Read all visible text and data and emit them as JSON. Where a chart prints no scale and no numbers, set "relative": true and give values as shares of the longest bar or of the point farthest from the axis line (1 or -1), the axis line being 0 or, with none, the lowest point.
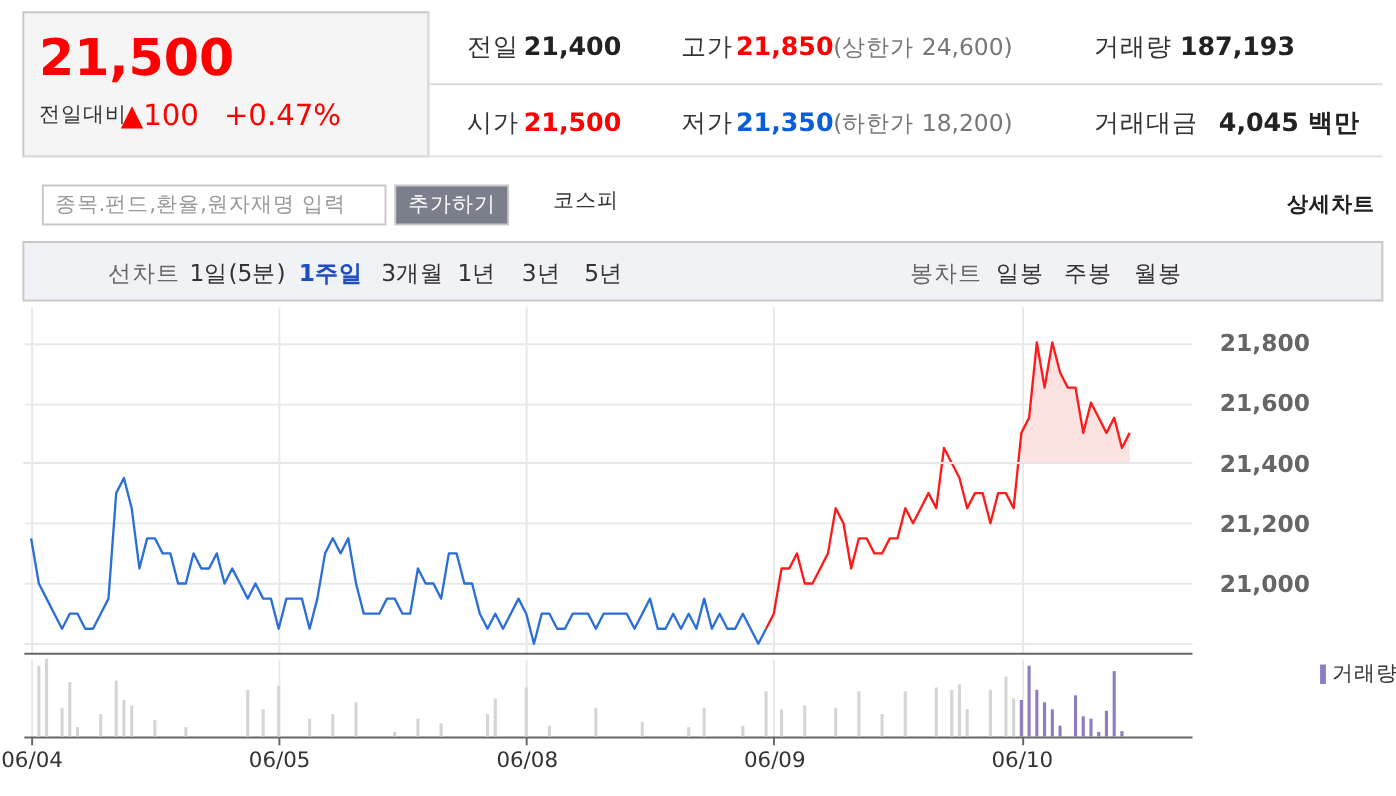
{
  "chart_data": [
    {
      "type": "line",
      "annotations": [
        "21,500",
        "전일대비",
        "▲100",
        "+0.47%",
        "전일",
        "21,400",
        "고가",
        "21,850",
        "(상한가 24,600)",
        "거래량",
        "187,193",
        "시가",
        "21,500",
        "저가",
        "21,350",
        "(하한가 18,200)",
        "거래대금",
        "4,045 백만",
        "종목.펀드,환율,원자재명 입력",
        "추가하기",
        "코스피",
        "상세차트",
        "선차트",
        "1일(5분)",
        "1주일",
        "3개월",
        "1년",
        "3년",
        "5년",
        "봉차트",
        "일봉",
        "주봉",
        "월봉"
      ],
      "categories": [
        null,
        null,
        null,
        null,
        null,
        null,
        null,
        null,
        null,
        null,
        null,
        null,
        null,
        null,
        null,
        null,
        null,
        null,
        null,
        null,
        null,
        null,
        null,
        null,
        null,
        null,
        null,
        null,
        null,
        null,
        null,
        null,
        null,
        null,
        null,
        null,
        null,
        null,
        null,
        null,
        null,
        null,
        null,
        null,
        null,
        null,
        null,
        null,
        null,
        null,
        null,
        null,
        null,
        null,
        null,
        null,
        null,
        null,
        null,
        null,
        null,
        null,
        null,
        null,
        null,
        null,
        null,
        null,
        null,
        null,
        null,
        null,
        null,
        null,
        null,
        null,
        null,
        null,
        null,
        null,
        null,
        null,
        null,
        null,
        null,
        null,
        null,
        null,
        null,
        null,
        null,
        null,
        null,
        null,
        null,
        null,
        null,
        null,
        null,
        null,
        null,
        null,
        null,
        null,
        null,
        null,
        null,
        null,
        null,
        null,
        null,
        null,
        null,
        null,
        null,
        null,
        null,
        null,
        null,
        null,
        null,
        null,
        null,
        null,
        null,
        null,
        null,
        null,
        null,
        null,
        null,
        null,
        null,
        null,
        null,
        null,
        null,
        null,
        null,
        null,
        null,
        null,
        null,
        null,
        null,
        null,
        null,
        null,
        null,
        null
      ],
      "ylim": [
        20770,
        21920
      ],
      "yticks": [
        {
          "value": 20800,
          "label": null
        },
        {
          "value": 21000,
          "label": "21,000"
        },
        {
          "value": 21200,
          "label": "21,200"
        },
        {
          "value": 21400,
          "label": "21,400"
        },
        {
          "value": 21600,
          "label": "21,600"
        },
        {
          "value": 21800,
          "label": "21,800"
        }
      ],
      "grid": true,
      "tick_labels": "y",
      "ref_lines": [
        {
          "axis": "y",
          "value": 21400,
          "color": "#e6e6e6"
        }
      ],
      "series": [
        {
          "type": "area",
          "color": "#fde2e2",
          "values": [
            null,
            null,
            null,
            null,
            null,
            null,
            null,
            null,
            null,
            null,
            null,
            null,
            null,
            null,
            null,
            null,
            null,
            null,
            null,
            null,
            null,
            null,
            null,
            null,
            null,
            null,
            null,
            null,
            null,
            null,
            null,
            null,
            null,
            null,
            null,
            null,
            null,
            null,
            null,
            null,
            null,
            null,
            null,
            null,
            null,
            null,
            null,
            null,
            null,
            null,
            null,
            null,
            null,
            null,
            null,
            null,
            null,
            null,
            null,
            null,
            null,
            null,
            null,
            null,
            null,
            null,
            null,
            null,
            null,
            null,
            null,
            null,
            null,
            null,
            null,
            null,
            null,
            null,
            null,
            null,
            null,
            null,
            null,
            null,
            null,
            null,
            null,
            null,
            null,
            null,
            null,
            null,
            null,
            null,
            null,
            null,
            null,
            null,
            null,
            null,
            null,
            null,
            null,
            null,
            null,
            null,
            null,
            null,
            null,
            null,
            null,
            null,
            null,
            null,
            null,
            null,
            null,
            null,
            null,
            null,
            null,
            null,
            null,
            null,
            null,
            null,
            null,
            null,
            21500,
            21550,
            21800,
            21650,
            21800,
            21700,
            21650,
            21650,
            21500,
            21600,
            21550,
            21500,
            21550,
            21450,
            21500,
            null,
            null,
            null,
            null,
            null,
            null,
            null
          ]
        },
        {
          "type": "line",
          "color": "#2b6fd6",
          "values": [
            21150,
            21000,
            20950,
            20900,
            20850,
            20900,
            20900,
            20850,
            20850,
            20900,
            20950,
            21300,
            21350,
            21250,
            21050,
            21150,
            21150,
            21100,
            21100,
            21000,
            21000,
            21100,
            21050,
            21050,
            21100,
            21000,
            21050,
            21000,
            20950,
            21000,
            20950,
            20950,
            20850,
            20950,
            20950,
            20950,
            20850,
            20950,
            21100,
            21150,
            21100,
            21150,
            21000,
            20900,
            20900,
            20900,
            20950,
            20950,
            20900,
            20900,
            21050,
            21000,
            21000,
            20950,
            21100,
            21100,
            21000,
            21000,
            20900,
            20850,
            20900,
            20850,
            20900,
            20950,
            20900,
            20800,
            20900,
            20900,
            20850,
            20850,
            20900,
            20900,
            20900,
            20850,
            20900,
            20900,
            20900,
            20900,
            20850,
            20900,
            20950,
            20850,
            20850,
            20900,
            20850,
            20900,
            20850,
            20950,
            20850,
            20900,
            20850,
            20850,
            20900,
            20850,
            20800,
            20850,
            null,
            null,
            null,
            null,
            null,
            null,
            null,
            null,
            null,
            null,
            null,
            null,
            null,
            null,
            null,
            null,
            null,
            null,
            null,
            null,
            null,
            null,
            null,
            null,
            null,
            null,
            null,
            null,
            null,
            null,
            null,
            null,
            null,
            null,
            null,
            null,
            null,
            null,
            null,
            null,
            null,
            null,
            null,
            null,
            null,
            null,
            null,
            null,
            null,
            null,
            null,
            null,
            null,
            null
          ]
        },
        {
          "type": "line",
          "color": "#ff1a1a",
          "values": [
            null,
            null,
            null,
            null,
            null,
            null,
            null,
            null,
            null,
            null,
            null,
            null,
            null,
            null,
            null,
            null,
            null,
            null,
            null,
            null,
            null,
            null,
            null,
            null,
            null,
            null,
            null,
            null,
            null,
            null,
            null,
            null,
            null,
            null,
            null,
            null,
            null,
            null,
            null,
            null,
            null,
            null,
            null,
            null,
            null,
            null,
            null,
            null,
            null,
            null,
            null,
            null,
            null,
            null,
            null,
            null,
            null,
            null,
            null,
            null,
            null,
            null,
            null,
            null,
            null,
            null,
            null,
            null,
            null,
            null,
            null,
            null,
            null,
            null,
            null,
            null,
            null,
            null,
            null,
            null,
            null,
            null,
            null,
            null,
            null,
            null,
            null,
            null,
            null,
            null,
            null,
            null,
            null,
            null,
            null,
            20850,
            20900,
            21050,
            21050,
            21100,
            21000,
            21000,
            21050,
            21100,
            21250,
            21200,
            21050,
            21150,
            21150,
            21100,
            21100,
            21150,
            21150,
            21250,
            21200,
            21250,
            21300,
            21250,
            21450,
            21400,
            21350,
            21250,
            21300,
            21300,
            21200,
            21300,
            21300,
            21250,
            21500,
            21550,
            21800,
            21650,
            21800,
            21700,
            21650,
            21650,
            21500,
            21600,
            21550,
            21500,
            21550,
            21450,
            21500,
            null,
            null,
            null,
            null,
            null,
            null,
            null
          ]
        }
      ]
    },
    {
      "type": "bar",
      "relative": true,
      "categories": [
        "06/04",
        null,
        null,
        null,
        null,
        null,
        null,
        null,
        null,
        null,
        null,
        null,
        null,
        null,
        null,
        null,
        null,
        null,
        null,
        null,
        null,
        null,
        null,
        null,
        null,
        null,
        null,
        null,
        null,
        null,
        null,
        null,
        "06/05",
        null,
        null,
        null,
        null,
        null,
        null,
        null,
        null,
        null,
        null,
        null,
        null,
        null,
        null,
        null,
        null,
        null,
        null,
        null,
        null,
        null,
        null,
        null,
        null,
        null,
        null,
        null,
        null,
        null,
        null,
        null,
        "06/08",
        null,
        null,
        null,
        null,
        null,
        null,
        null,
        null,
        null,
        null,
        null,
        null,
        null,
        null,
        null,
        null,
        null,
        null,
        null,
        null,
        null,
        null,
        null,
        null,
        null,
        null,
        null,
        null,
        null,
        null,
        null,
        "06/09",
        null,
        null,
        null,
        null,
        null,
        null,
        null,
        null,
        null,
        null,
        null,
        null,
        null,
        null,
        null,
        null,
        null,
        null,
        null,
        null,
        null,
        null,
        null,
        null,
        null,
        null,
        null,
        null,
        null,
        null,
        null,
        "06/10",
        null,
        null,
        null,
        null,
        null,
        null,
        null,
        null,
        null,
        null,
        null,
        null,
        null,
        null,
        null,
        null,
        null,
        null,
        null,
        null,
        null
      ],
      "grid": "x",
      "tick_labels": "x",
      "legend": "top right",
      "series": [
        {
          "name": "거래량",
          "color": "#8e7cc3",
          "values": [
            null,
            0.91,
            1.0,
            null,
            0.37,
            0.7,
            0.12,
            null,
            null,
            0.29,
            null,
            0.72,
            0.47,
            0.4,
            null,
            null,
            0.21,
            null,
            null,
            null,
            0.12,
            null,
            null,
            null,
            null,
            null,
            null,
            null,
            0.6,
            null,
            0.35,
            null,
            0.65,
            null,
            null,
            null,
            0.23,
            null,
            null,
            0.29,
            null,
            null,
            0.44,
            null,
            null,
            null,
            null,
            0.06,
            null,
            null,
            0.23,
            null,
            null,
            0.17,
            null,
            null,
            null,
            null,
            null,
            0.29,
            0.49,
            null,
            null,
            null,
            0.63,
            null,
            null,
            0.14,
            null,
            null,
            null,
            null,
            null,
            0.37,
            null,
            null,
            null,
            null,
            null,
            0.19,
            null,
            null,
            null,
            null,
            null,
            0.12,
            null,
            0.37,
            null,
            null,
            null,
            null,
            0.14,
            null,
            null,
            0.58,
            null,
            0.35,
            null,
            null,
            0.4,
            null,
            null,
            null,
            0.37,
            null,
            null,
            0.58,
            null,
            null,
            0.29,
            null,
            null,
            0.58,
            null,
            null,
            null,
            0.63,
            null,
            0.6,
            0.67,
            0.35,
            null,
            null,
            0.6,
            null,
            0.77,
            0.49,
            0.47,
            0.91,
            0.6,
            0.44,
            0.35,
            0.14,
            null,
            0.53,
            0.26,
            0.23,
            0.06,
            0.33,
            0.84,
            0.07,
            null,
            null,
            null,
            null,
            null,
            null,
            null,
            null
          ],
          "colors": [
            "#d5d5d5",
            "#d5d5d5",
            "#d5d5d5",
            "#d5d5d5",
            "#d5d5d5",
            "#d5d5d5",
            "#d5d5d5",
            "#d5d5d5",
            "#d5d5d5",
            "#d5d5d5",
            "#d5d5d5",
            "#d5d5d5",
            "#d5d5d5",
            "#d5d5d5",
            "#d5d5d5",
            "#d5d5d5",
            "#d5d5d5",
            "#d5d5d5",
            "#d5d5d5",
            "#d5d5d5",
            "#d5d5d5",
            "#d5d5d5",
            "#d5d5d5",
            "#d5d5d5",
            "#d5d5d5",
            "#d5d5d5",
            "#d5d5d5",
            "#d5d5d5",
            "#d5d5d5",
            "#d5d5d5",
            "#d5d5d5",
            "#d5d5d5",
            "#d5d5d5",
            "#d5d5d5",
            "#d5d5d5",
            "#d5d5d5",
            "#d5d5d5",
            "#d5d5d5",
            "#d5d5d5",
            "#d5d5d5",
            "#d5d5d5",
            "#d5d5d5",
            "#d5d5d5",
            "#d5d5d5",
            "#d5d5d5",
            "#d5d5d5",
            "#d5d5d5",
            "#d5d5d5",
            "#d5d5d5",
            "#d5d5d5",
            "#d5d5d5",
            "#d5d5d5",
            "#d5d5d5",
            "#d5d5d5",
            "#d5d5d5",
            "#d5d5d5",
            "#d5d5d5",
            "#d5d5d5",
            "#d5d5d5",
            "#d5d5d5",
            "#d5d5d5",
            "#d5d5d5",
            "#d5d5d5",
            "#d5d5d5",
            "#d5d5d5",
            "#d5d5d5",
            "#d5d5d5",
            "#d5d5d5",
            "#d5d5d5",
            "#d5d5d5",
            "#d5d5d5",
            "#d5d5d5",
            "#d5d5d5",
            "#d5d5d5",
            "#d5d5d5",
            "#d5d5d5",
            "#d5d5d5",
            "#d5d5d5",
            "#d5d5d5",
            "#d5d5d5",
            "#d5d5d5",
            "#d5d5d5",
            "#d5d5d5",
            "#d5d5d5",
            "#d5d5d5",
            "#d5d5d5",
            "#d5d5d5",
            "#d5d5d5",
            "#d5d5d5",
            "#d5d5d5",
            "#d5d5d5",
            "#d5d5d5",
            "#d5d5d5",
            "#d5d5d5",
            "#d5d5d5",
            "#d5d5d5",
            "#d5d5d5",
            "#d5d5d5",
            "#d5d5d5",
            "#d5d5d5",
            "#d5d5d5",
            "#d5d5d5",
            "#d5d5d5",
            "#d5d5d5",
            "#d5d5d5",
            "#d5d5d5",
            "#d5d5d5",
            "#d5d5d5",
            "#d5d5d5",
            "#d5d5d5",
            "#d5d5d5",
            "#d5d5d5",
            "#d5d5d5",
            "#d5d5d5",
            "#d5d5d5",
            "#d5d5d5",
            "#d5d5d5",
            "#d5d5d5",
            "#d5d5d5",
            "#d5d5d5",
            "#d5d5d5",
            "#d5d5d5",
            "#d5d5d5",
            "#d5d5d5",
            "#d5d5d5",
            "#d5d5d5",
            "#d5d5d5",
            "#d5d5d5",
            "#8e7cc3",
            "#8e7cc3",
            "#8e7cc3",
            "#8e7cc3",
            "#8e7cc3",
            "#8e7cc3",
            "#8e7cc3",
            "#8e7cc3",
            "#8e7cc3",
            "#8e7cc3",
            "#8e7cc3",
            "#8e7cc3",
            "#8e7cc3",
            "#8e7cc3",
            "#8e7cc3",
            "#8e7cc3",
            "#8e7cc3",
            "#8e7cc3",
            "#8e7cc3",
            "#8e7cc3",
            "#8e7cc3",
            "#8e7cc3"
          ]
        }
      ]
    }
  ]
}
